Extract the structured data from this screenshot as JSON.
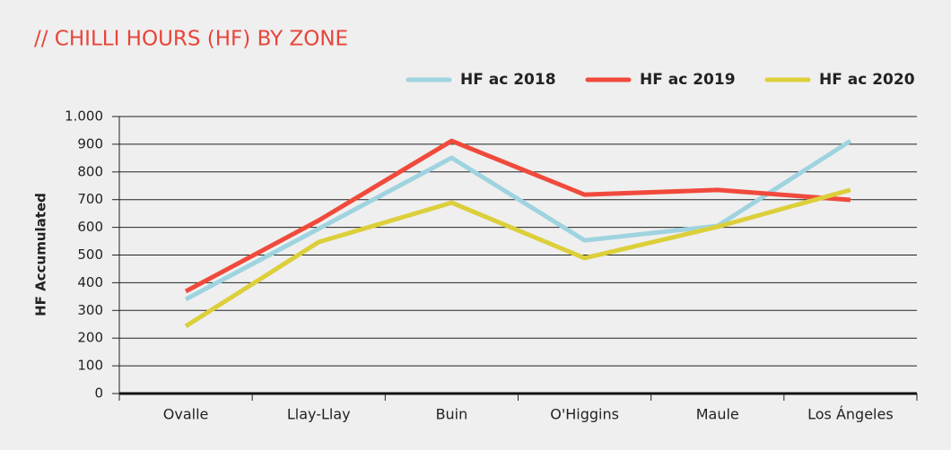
{
  "chart_data": {
    "type": "line",
    "title": "// CHILLI HOURS (HF) BY ZONE",
    "y_label": "HF Accumulated",
    "categories": [
      "Ovalle",
      "Llay-Llay",
      "Buin",
      "O'Higgins",
      "Maule",
      "Los Ángeles"
    ],
    "series": [
      {
        "name": "HF ac 2018",
        "color": "#9fd3df",
        "values": [
          340,
          595,
          851,
          553,
          605,
          912
        ]
      },
      {
        "name": "HF ac 2019",
        "color": "#f04a3c",
        "values": [
          369,
          625,
          912,
          718,
          735,
          699
        ]
      },
      {
        "name": "HF ac 2020",
        "color": "#dccf3a",
        "values": [
          243,
          547,
          689,
          489,
          602,
          735
        ]
      }
    ],
    "ylim": [
      0,
      1000
    ],
    "yticks": [
      0,
      100,
      200,
      300,
      400,
      500,
      600,
      700,
      800,
      900,
      {
        "value": 1000,
        "label": "1.000"
      }
    ],
    "grid": true,
    "legend": "top-right"
  }
}
